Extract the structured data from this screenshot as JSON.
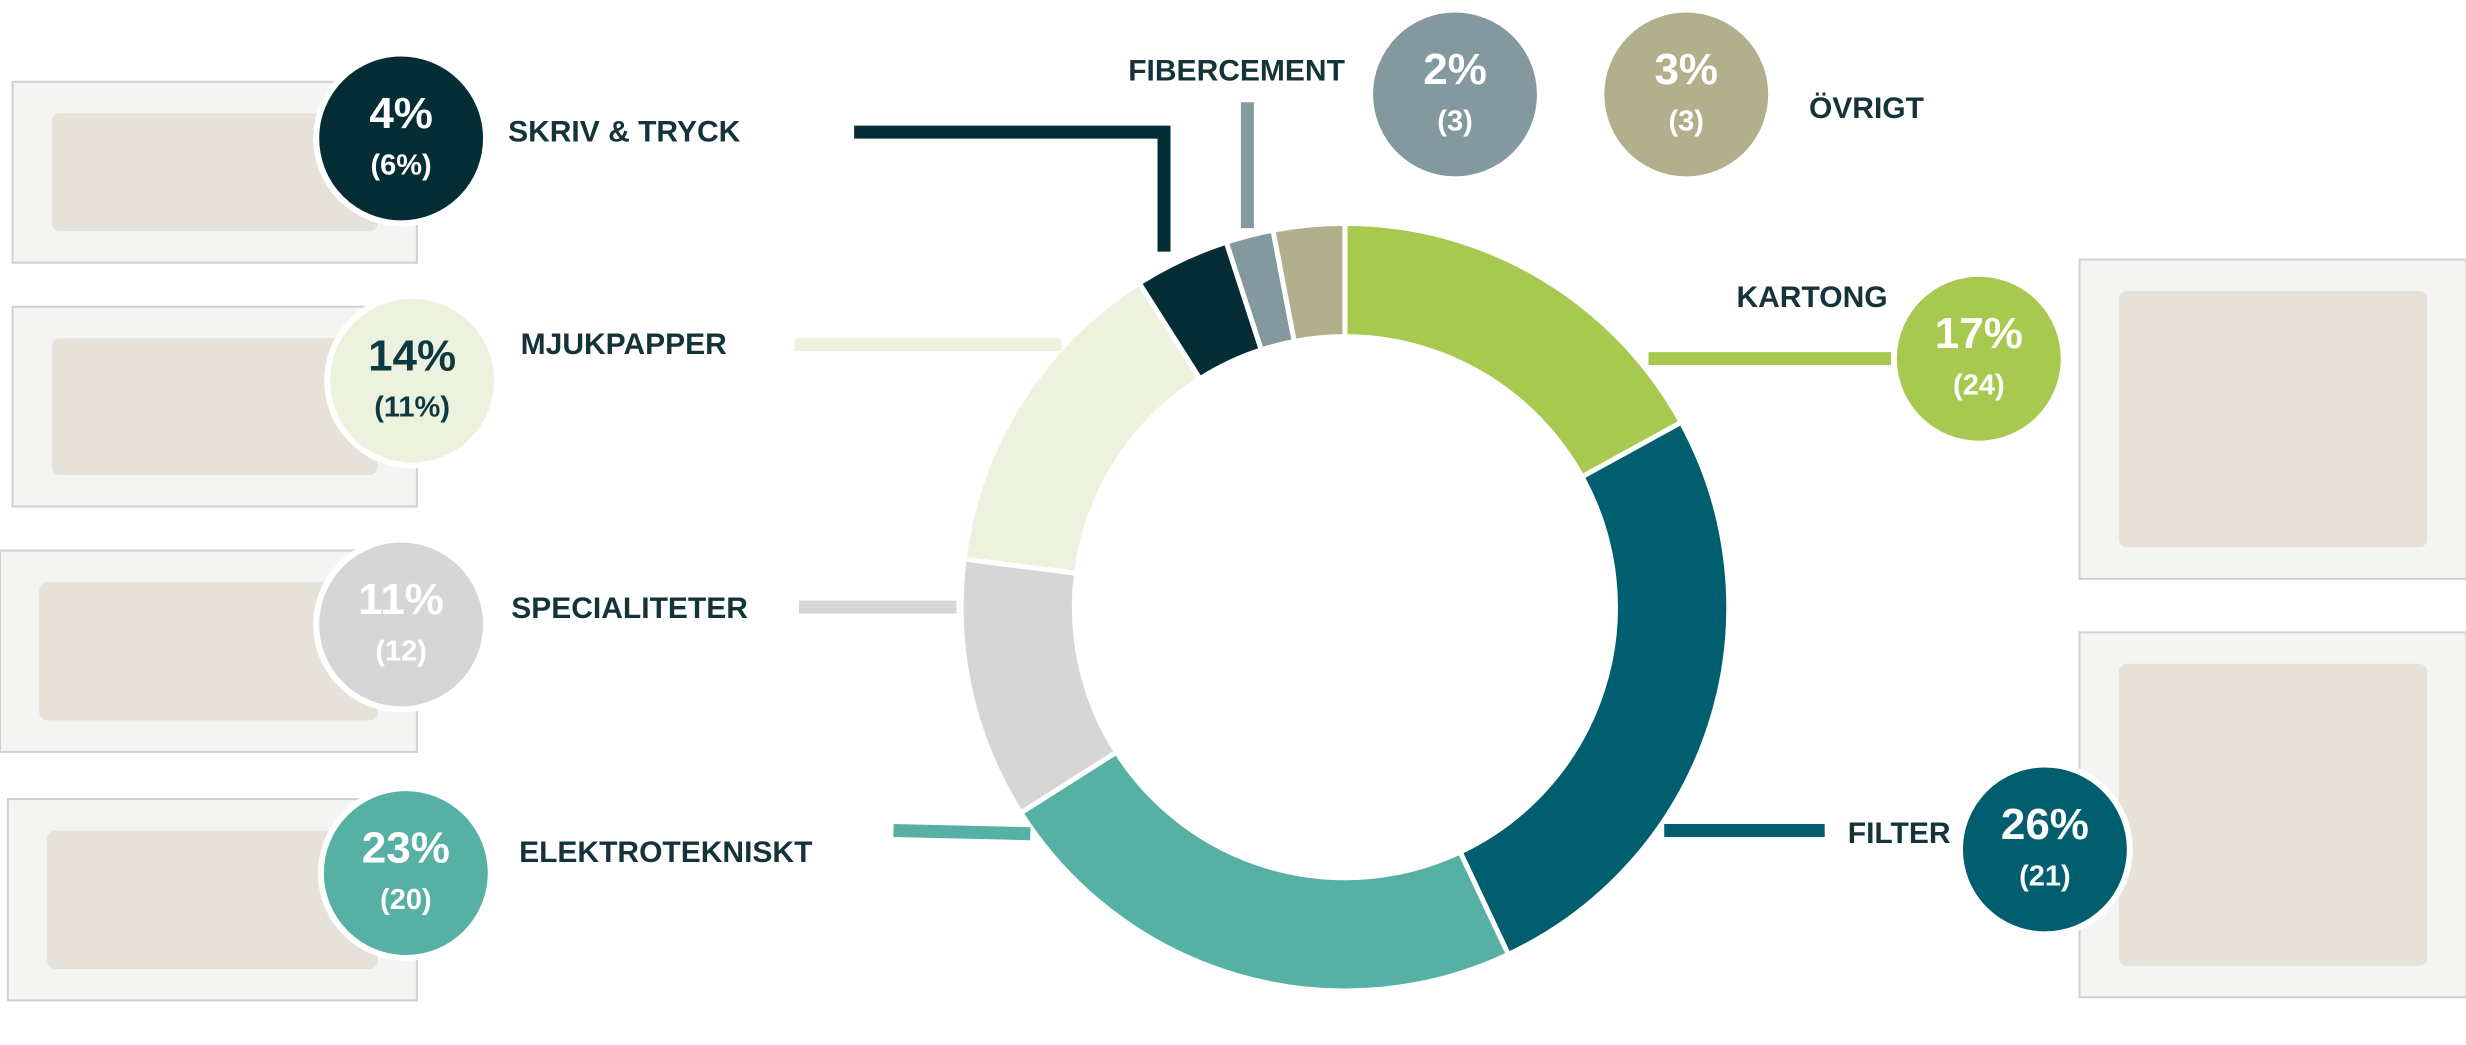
{
  "chart_data": {
    "type": "donut",
    "categories": [
      "KARTONG",
      "FILTER",
      "ELEKTROTEKNISKT",
      "SPECIALITETER",
      "MJUKPAPPER",
      "SKRIV & TRYCK",
      "FIBERCEMENT",
      "ÖVRIGT"
    ],
    "values": [
      17,
      26,
      23,
      11,
      14,
      4,
      2,
      3
    ],
    "value_labels": [
      "17%",
      "26%",
      "23%",
      "11%",
      "14%",
      "4%",
      "2%",
      "3%"
    ],
    "previous_values": [
      24,
      21,
      20,
      12,
      11,
      6,
      3,
      3
    ],
    "previous_labels": [
      "(24)",
      "(21)",
      "(20)",
      "(12)",
      "(11%)",
      "(6%)",
      "(3)",
      "(3)"
    ],
    "colors": [
      "#a8c94f",
      "#005e6e",
      "#56b0a4",
      "#d6d6d6",
      "#edf2df",
      "#042d35",
      "#84999f",
      "#b2b08c"
    ]
  }
}
